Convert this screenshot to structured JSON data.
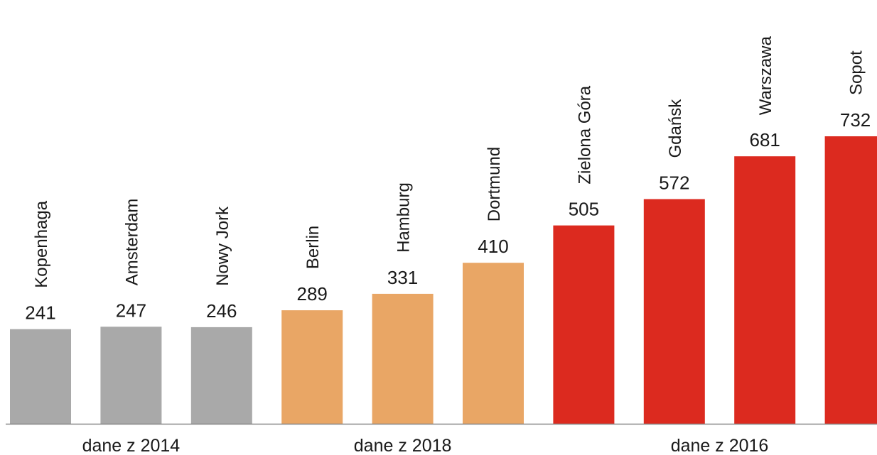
{
  "chart_data": {
    "type": "bar",
    "categories": [
      "Kopenhaga",
      "Amsterdam",
      "Nowy Jork",
      "Berlin",
      "Hamburg",
      "Dortmund",
      "Zielona Góra",
      "Gdańsk",
      "Warszawa",
      "Sopot"
    ],
    "values": [
      241,
      247,
      246,
      289,
      331,
      410,
      505,
      572,
      681,
      732
    ],
    "data_labels": [
      "241",
      "247",
      "246",
      "289",
      "331",
      "410",
      "505",
      "572",
      "681",
      "732"
    ],
    "groups": [
      {
        "label": "dane z 2014",
        "start": 0,
        "end": 2,
        "color": "#a9a9a9"
      },
      {
        "label": "dane z 2018",
        "start": 3,
        "end": 5,
        "color": "#e9a665"
      },
      {
        "label": "dane z 2016",
        "start": 6,
        "end": 9,
        "color": "#dc2a1f"
      }
    ],
    "ylim": [
      0,
      800
    ],
    "grid": false,
    "legend": "none",
    "baseline_color": "#888888"
  }
}
